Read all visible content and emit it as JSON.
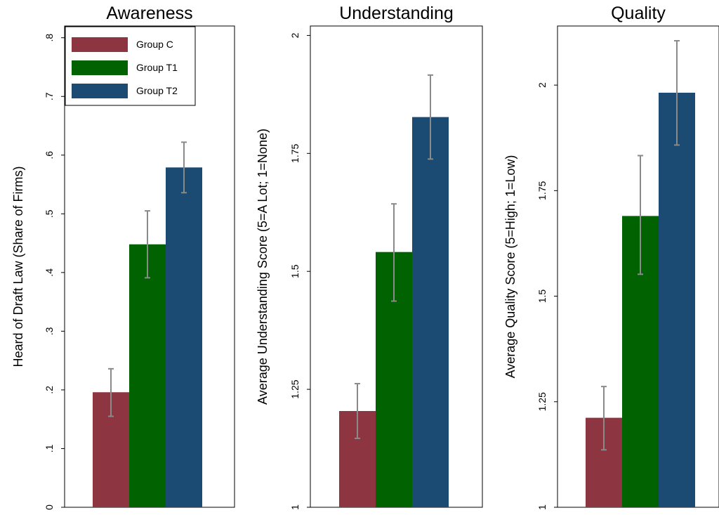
{
  "legend": {
    "placement": "top-left of first panel",
    "items": [
      {
        "label": "Group C",
        "color": "#8d3540"
      },
      {
        "label": "Group T1",
        "color": "#006200"
      },
      {
        "label": "Group T2",
        "color": "#1b4a73"
      }
    ]
  },
  "error_bar_color": "#8a8a8a",
  "chart_data": [
    {
      "type": "bar",
      "title": "Awareness",
      "ylabel": "Heard of Draft Law (Share of Firms)",
      "xlabel": "",
      "ylim": [
        0,
        0.82
      ],
      "yticks": [
        0,
        0.1,
        0.2,
        0.3,
        0.4,
        0.5,
        0.6,
        0.7,
        0.8
      ],
      "ytick_labels": [
        "0",
        ".1",
        ".2",
        ".3",
        ".4",
        ".5",
        ".6",
        ".7",
        ".8"
      ],
      "grid": false,
      "series": [
        {
          "name": "Group C",
          "value": 0.196,
          "ci": [
            0.155,
            0.236
          ]
        },
        {
          "name": "Group T1",
          "value": 0.448,
          "ci": [
            0.391,
            0.505
          ]
        },
        {
          "name": "Group T2",
          "value": 0.579,
          "ci": [
            0.536,
            0.622
          ]
        }
      ]
    },
    {
      "type": "bar",
      "title": "Understanding",
      "ylabel": "Average Understanding Score (5=A Lot; 1=None)",
      "xlabel": "",
      "ylim": [
        1,
        2.02
      ],
      "yticks": [
        1,
        1.25,
        1.5,
        1.75,
        2
      ],
      "ytick_labels": [
        "1",
        "1.25",
        "1.5",
        "1.75",
        "2"
      ],
      "grid": false,
      "series": [
        {
          "name": "Group C",
          "value": 1.204,
          "ci": [
            1.146,
            1.262
          ]
        },
        {
          "name": "Group T1",
          "value": 1.541,
          "ci": [
            1.437,
            1.643
          ]
        },
        {
          "name": "Group T2",
          "value": 1.827,
          "ci": [
            1.738,
            1.916
          ]
        }
      ]
    },
    {
      "type": "bar",
      "title": "Quality",
      "ylabel": "Average Quality Score (5=High; 1=Low)",
      "xlabel": "",
      "ylim": [
        1,
        2.14
      ],
      "yticks": [
        1,
        1.25,
        1.5,
        1.75,
        2
      ],
      "ytick_labels": [
        "1",
        "1.25",
        "1.5",
        "1.75",
        "2"
      ],
      "grid": false,
      "series": [
        {
          "name": "Group C",
          "value": 1.212,
          "ci": [
            1.136,
            1.286
          ]
        },
        {
          "name": "Group T1",
          "value": 1.69,
          "ci": [
            1.552,
            1.833
          ]
        },
        {
          "name": "Group T2",
          "value": 1.982,
          "ci": [
            1.858,
            2.105
          ]
        }
      ]
    }
  ]
}
